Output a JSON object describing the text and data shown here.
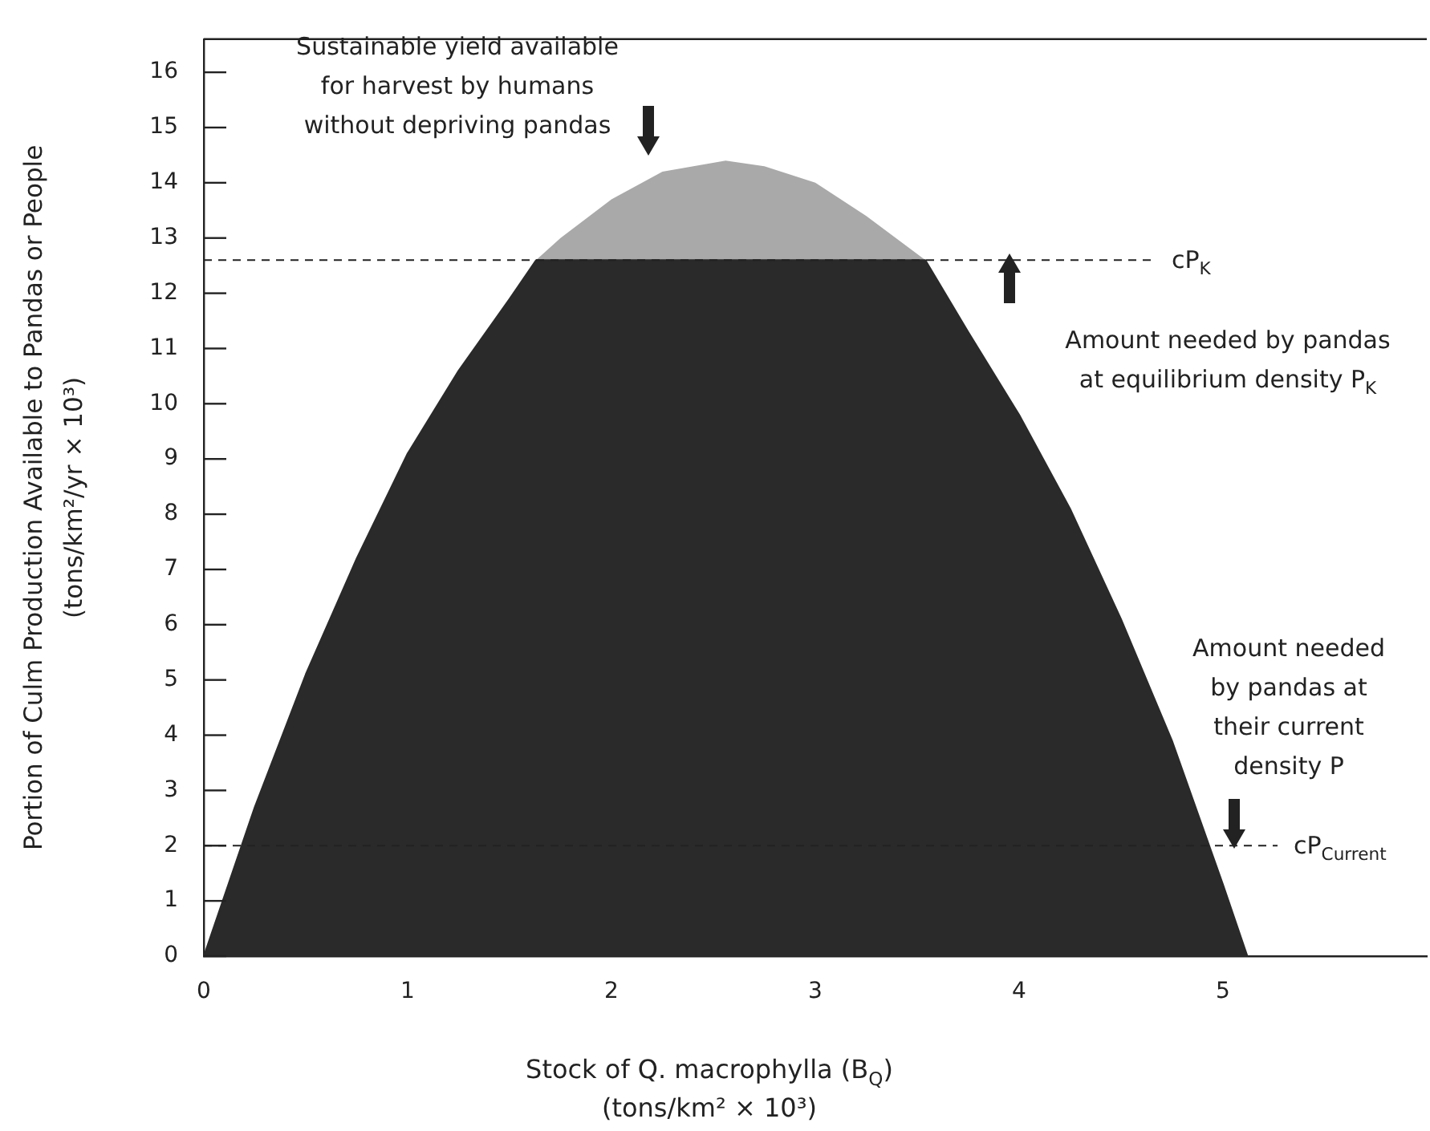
{
  "chart_data": {
    "type": "area",
    "xlabel": "Stock of Q. macrophylla (B$_{Q}$)\n(tons/km² × 10³)",
    "ylabel": "Portion of Culm Production Available to Pandas or People\n(tons/km²/yr × 10³)",
    "x": [
      0,
      0.25,
      0.5,
      0.75,
      1,
      1.25,
      1.5,
      1.63,
      1.75,
      2,
      2.25,
      2.56,
      2.75,
      3,
      3.25,
      3.54,
      3.75,
      4,
      4.25,
      4.5,
      4.75,
      5,
      5.12
    ],
    "stacked": true,
    "series": [
      {
        "color": "#2a2a2a",
        "values": [
          0,
          2.7,
          5.1,
          7.2,
          9.1,
          10.6,
          11.9,
          12.6,
          12.6,
          12.6,
          12.6,
          12.6,
          12.6,
          12.6,
          12.6,
          12.6,
          11.3,
          9.8,
          8.1,
          6.1,
          3.9,
          1.3,
          0
        ]
      },
      {
        "color": "#a9a9a9",
        "values": [
          0,
          0,
          0,
          0,
          0,
          0,
          0,
          0,
          0.4,
          1.1,
          1.6,
          1.8,
          1.7,
          1.4,
          0.8,
          0,
          0,
          0,
          0,
          0,
          0,
          0,
          0
        ]
      }
    ],
    "xlim": [
      0,
      6
    ],
    "xticks": [
      0,
      1,
      2,
      3,
      4,
      5
    ],
    "ylim": [
      0,
      16.6
    ],
    "yticks": [
      0,
      1,
      2,
      3,
      4,
      5,
      6,
      7,
      8,
      9,
      10,
      11,
      12,
      13,
      14,
      15,
      16
    ],
    "ref_lines": [
      {
        "axis": "y",
        "value": 12.6,
        "label": "cP$_{K}$",
        "line_style": "dashed"
      },
      {
        "axis": "y",
        "value": 2,
        "label": "cP$_{Current}$",
        "line_style": "dashed"
      }
    ],
    "annotations": [
      "Sustainable yield available\nfor harvest by humans\nwithout depriving pandas",
      "Amount needed by pandas\nat equilibrium density P$_{K}$",
      "Amount needed\nby pandas at\ntheir current\ndensity P"
    ],
    "grid": false,
    "legend": false
  }
}
